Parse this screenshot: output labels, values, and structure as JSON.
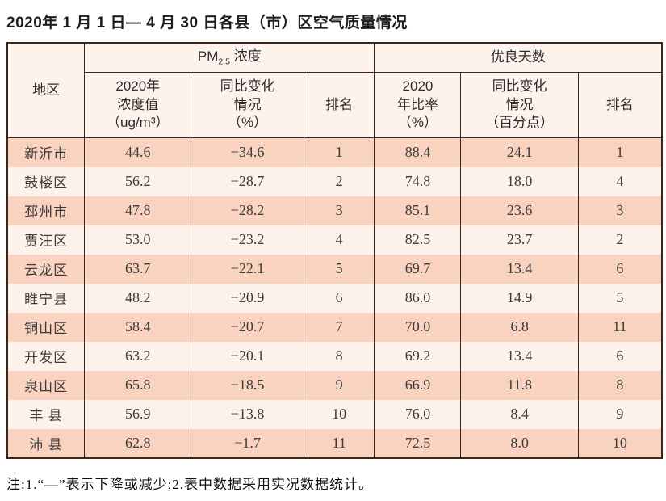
{
  "page": {
    "title": "2020年 1 月 1 日— 4 月 30 日各县（市）区空气质量情况",
    "footnote": "注:1.“—”表示下降或减少;2.表中数据采用实况数据统计。"
  },
  "table": {
    "header": {
      "region": "地区",
      "pm_group_prefix": "PM",
      "pm_group_sub": "2.5",
      "pm_group_suffix": " 浓度",
      "days_group": "优良天数",
      "pm_value": [
        "2020年",
        "浓度值",
        "（ug/m³）"
      ],
      "pm_change": [
        "同比变化",
        "情况",
        "（%）"
      ],
      "pm_rank": "排名",
      "days_rate": [
        "2020",
        "年比率",
        "（%）"
      ],
      "days_change": [
        "同比变化",
        "情况",
        "（百分点）"
      ],
      "days_rank": "排名"
    },
    "rows": [
      {
        "region": "新沂市",
        "pm_value": "44.6",
        "pm_change": "−34.6",
        "pm_rank": "1",
        "days_rate": "88.4",
        "days_change": "24.1",
        "days_rank": "1"
      },
      {
        "region": "鼓楼区",
        "pm_value": "56.2",
        "pm_change": "−28.7",
        "pm_rank": "2",
        "days_rate": "74.8",
        "days_change": "18.0",
        "days_rank": "4"
      },
      {
        "region": "邳州市",
        "pm_value": "47.8",
        "pm_change": "−28.2",
        "pm_rank": "3",
        "days_rate": "85.1",
        "days_change": "23.6",
        "days_rank": "3"
      },
      {
        "region": "贾汪区",
        "pm_value": "53.0",
        "pm_change": "−23.2",
        "pm_rank": "4",
        "days_rate": "82.5",
        "days_change": "23.7",
        "days_rank": "2"
      },
      {
        "region": "云龙区",
        "pm_value": "63.7",
        "pm_change": "−22.1",
        "pm_rank": "5",
        "days_rate": "69.7",
        "days_change": "13.4",
        "days_rank": "6"
      },
      {
        "region": "睢宁县",
        "pm_value": "48.2",
        "pm_change": "−20.9",
        "pm_rank": "6",
        "days_rate": "86.0",
        "days_change": "14.9",
        "days_rank": "5"
      },
      {
        "region": "铜山区",
        "pm_value": "58.4",
        "pm_change": "−20.7",
        "pm_rank": "7",
        "days_rate": "70.0",
        "days_change": "6.8",
        "days_rank": "11"
      },
      {
        "region": "开发区",
        "pm_value": "63.2",
        "pm_change": "−20.1",
        "pm_rank": "8",
        "days_rate": "69.2",
        "days_change": "13.4",
        "days_rank": "6"
      },
      {
        "region": "泉山区",
        "pm_value": "65.8",
        "pm_change": "−18.5",
        "pm_rank": "9",
        "days_rate": "66.9",
        "days_change": "11.8",
        "days_rank": "8"
      },
      {
        "region": "丰 县",
        "pm_value": "56.9",
        "pm_change": "−13.8",
        "pm_rank": "10",
        "days_rate": "76.0",
        "days_change": "8.4",
        "days_rank": "9"
      },
      {
        "region": "沛 县",
        "pm_value": "62.8",
        "pm_change": "−1.7",
        "pm_rank": "11",
        "days_rate": "72.5",
        "days_change": "8.0",
        "days_rank": "10"
      }
    ]
  },
  "colors": {
    "row_salmon": "#f9d2c0",
    "row_light": "#fdf2ea",
    "header_bg": "#fdf3ec",
    "border": "#3a241e",
    "text": "#373737"
  }
}
